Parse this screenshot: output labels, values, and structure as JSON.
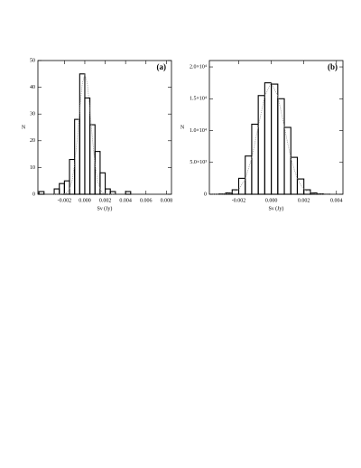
{
  "chart_data": [
    {
      "type": "histogram",
      "annotation": "(a)",
      "xlabel": "Sν (Jy)",
      "ylabel": "N",
      "bins": [
        -0.0045,
        -0.004,
        -0.0035,
        -0.003,
        -0.0025,
        -0.002,
        -0.0015,
        -0.001,
        -0.0005,
        0,
        0.0005,
        0.001,
        0.0015,
        0.002,
        0.0025,
        0.003,
        0.0035,
        0.004,
        0.0045
      ],
      "values": [
        1,
        0,
        0,
        2,
        4,
        5,
        13,
        28,
        45,
        36,
        26,
        16,
        8,
        2,
        1,
        0,
        0,
        1
      ],
      "color": "#000000",
      "fit": {
        "x": [
          -0.003,
          -0.0025,
          -0.002,
          -0.00175,
          -0.0015,
          -0.00125,
          -0.001,
          -0.00075,
          -0.0005,
          -0.00025,
          0,
          0.00025,
          0.0005,
          0.00075,
          0.001,
          0.00125,
          0.0015,
          0.00175,
          0.002,
          0.0025,
          0.003
        ],
        "values": [
          0,
          0,
          0.2,
          0.6,
          2,
          5.1,
          11.2,
          20.6,
          31.8,
          41.3,
          45,
          41.3,
          31.8,
          20.6,
          11.2,
          5.1,
          2,
          0.6,
          0.2,
          0,
          0
        ],
        "color": "#999999"
      },
      "xlim": [
        -0.0046,
        0.0085
      ],
      "ylim": [
        0,
        50
      ],
      "xticks": [
        -0.002,
        {
          "value": 0,
          "label": "0.000"
        },
        0.002,
        0.004,
        0.006,
        0.008
      ],
      "yticks": [
        0,
        10,
        20,
        30,
        40,
        50
      ]
    },
    {
      "type": "histogram",
      "annotation": "(b)",
      "xlabel": "Sν (Jy)",
      "ylabel": "N",
      "bins": [
        -0.0036,
        -0.0032,
        -0.0028,
        -0.0024,
        -0.002,
        -0.0016,
        -0.0012,
        -0.0008,
        -0.0004,
        0,
        0.0004,
        0.0008,
        0.0012,
        0.0016,
        0.002,
        0.0024,
        0.0028,
        0.0032,
        0.0036
      ],
      "values": [
        10,
        50,
        200,
        700,
        2500,
        6000,
        11000,
        15500,
        17500,
        17300,
        15000,
        10500,
        5800,
        2400,
        700,
        200,
        60,
        10
      ],
      "color": "#000000",
      "fit": {
        "x": [
          -0.0036,
          -0.0032,
          -0.0028,
          -0.0024,
          -0.002,
          -0.0016,
          -0.0012,
          -0.0008,
          -0.0004,
          0,
          0.0004,
          0.0008,
          0.0012,
          0.0016,
          0.002,
          0.0024,
          0.0028,
          0.0032,
          0.0036
        ],
        "values": [
          1,
          6,
          38,
          194,
          768,
          2368,
          5680,
          10614,
          15444,
          17500,
          15444,
          10614,
          5680,
          2368,
          768,
          194,
          38,
          6,
          1
        ],
        "color": "#999999"
      },
      "xlim": [
        -0.0038,
        0.0044
      ],
      "ylim": [
        0,
        21000
      ],
      "xticks": [
        -0.002,
        {
          "value": 0,
          "label": "0.000"
        },
        0.002,
        0.004
      ],
      "yticks": [
        0,
        {
          "value": 5000,
          "label": "5.0×10³"
        },
        {
          "value": 10000,
          "label": "1.0×10⁴"
        },
        {
          "value": 15000,
          "label": "1.5×10⁴"
        },
        {
          "value": 20000,
          "label": "2.0×10⁴"
        }
      ]
    }
  ]
}
